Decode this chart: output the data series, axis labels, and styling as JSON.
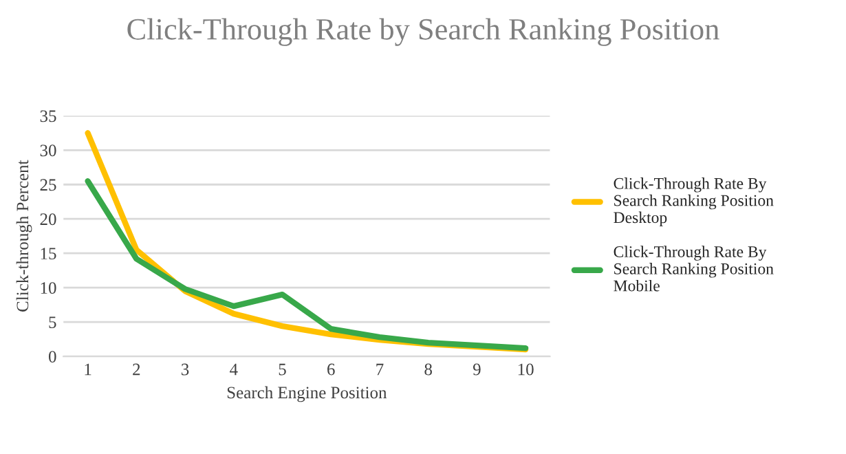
{
  "chart_data": {
    "type": "line",
    "title": "Click-Through Rate by Search Ranking Position",
    "xlabel": "Search Engine Position",
    "ylabel": "Click-through Percent",
    "categories": [
      "1",
      "2",
      "3",
      "4",
      "5",
      "6",
      "7",
      "8",
      "9",
      "10"
    ],
    "series": [
      {
        "name": "Click-Through Rate By Search Ranking Position Desktop",
        "color": "#ffc000",
        "values": [
          32.5,
          15.5,
          9.5,
          6.2,
          4.4,
          3.2,
          2.4,
          1.8,
          1.4,
          1.0
        ]
      },
      {
        "name": "Click-Through Rate By Search Ranking Position Mobile",
        "color": "#38a84a",
        "values": [
          25.5,
          14.2,
          9.8,
          7.3,
          9.0,
          4.0,
          2.8,
          2.0,
          1.6,
          1.2
        ]
      }
    ],
    "ylim": [
      0,
      35
    ],
    "yticks": [
      0,
      5,
      10,
      15,
      20,
      25,
      30,
      35
    ],
    "grid": "y",
    "legend": "right",
    "marker": "none",
    "line_style": "solid"
  }
}
